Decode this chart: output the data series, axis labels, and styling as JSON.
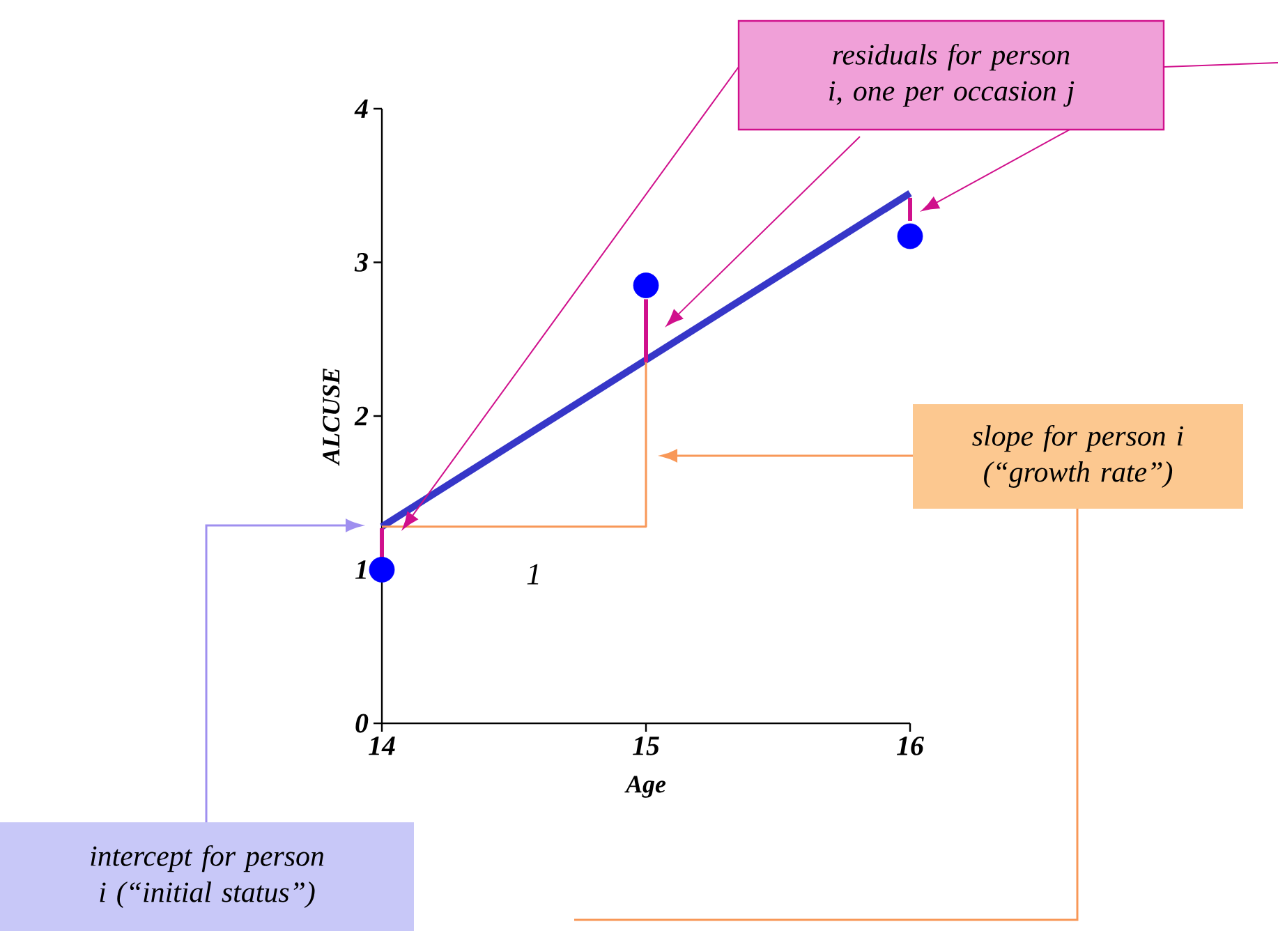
{
  "chart_data": {
    "type": "scatter",
    "xlabel": "Age",
    "ylabel": "ALCUSE",
    "xlim": [
      14,
      16
    ],
    "ylim": [
      0,
      4
    ],
    "xticks": [
      14,
      15,
      16
    ],
    "yticks": [
      0,
      1,
      2,
      3,
      4
    ],
    "grid": false,
    "series": [
      {
        "type": "line",
        "marker": "none",
        "color": "#3636c8",
        "x": [
          14,
          16
        ],
        "values": [
          1.28,
          3.45
        ]
      },
      {
        "type": "line",
        "marker": "none",
        "color": "#f89858",
        "x": [
          14,
          15,
          15
        ],
        "values": [
          1.28,
          1.28,
          2.36
        ]
      },
      {
        "type": "line",
        "marker": "none",
        "color": "#d0108c",
        "x": [
          14,
          14
        ],
        "values": [
          1.05,
          1.27
        ]
      },
      {
        "type": "line",
        "marker": "none",
        "color": "#d0108c",
        "x": [
          15,
          15
        ],
        "values": [
          2.35,
          2.76
        ]
      },
      {
        "type": "line",
        "marker": "none",
        "color": "#d0108c",
        "x": [
          16,
          16
        ],
        "values": [
          3.27,
          3.42
        ]
      },
      {
        "marker": "circle",
        "color": "#0000ff",
        "x": [
          14,
          15,
          16
        ],
        "values": [
          1.0,
          2.85,
          3.17
        ]
      }
    ],
    "annotations": [
      "residuals for person i, one per occasion j",
      "slope for person i (“growth rate”)",
      "intercept for person i (“initial status”)",
      "1"
    ]
  }
}
